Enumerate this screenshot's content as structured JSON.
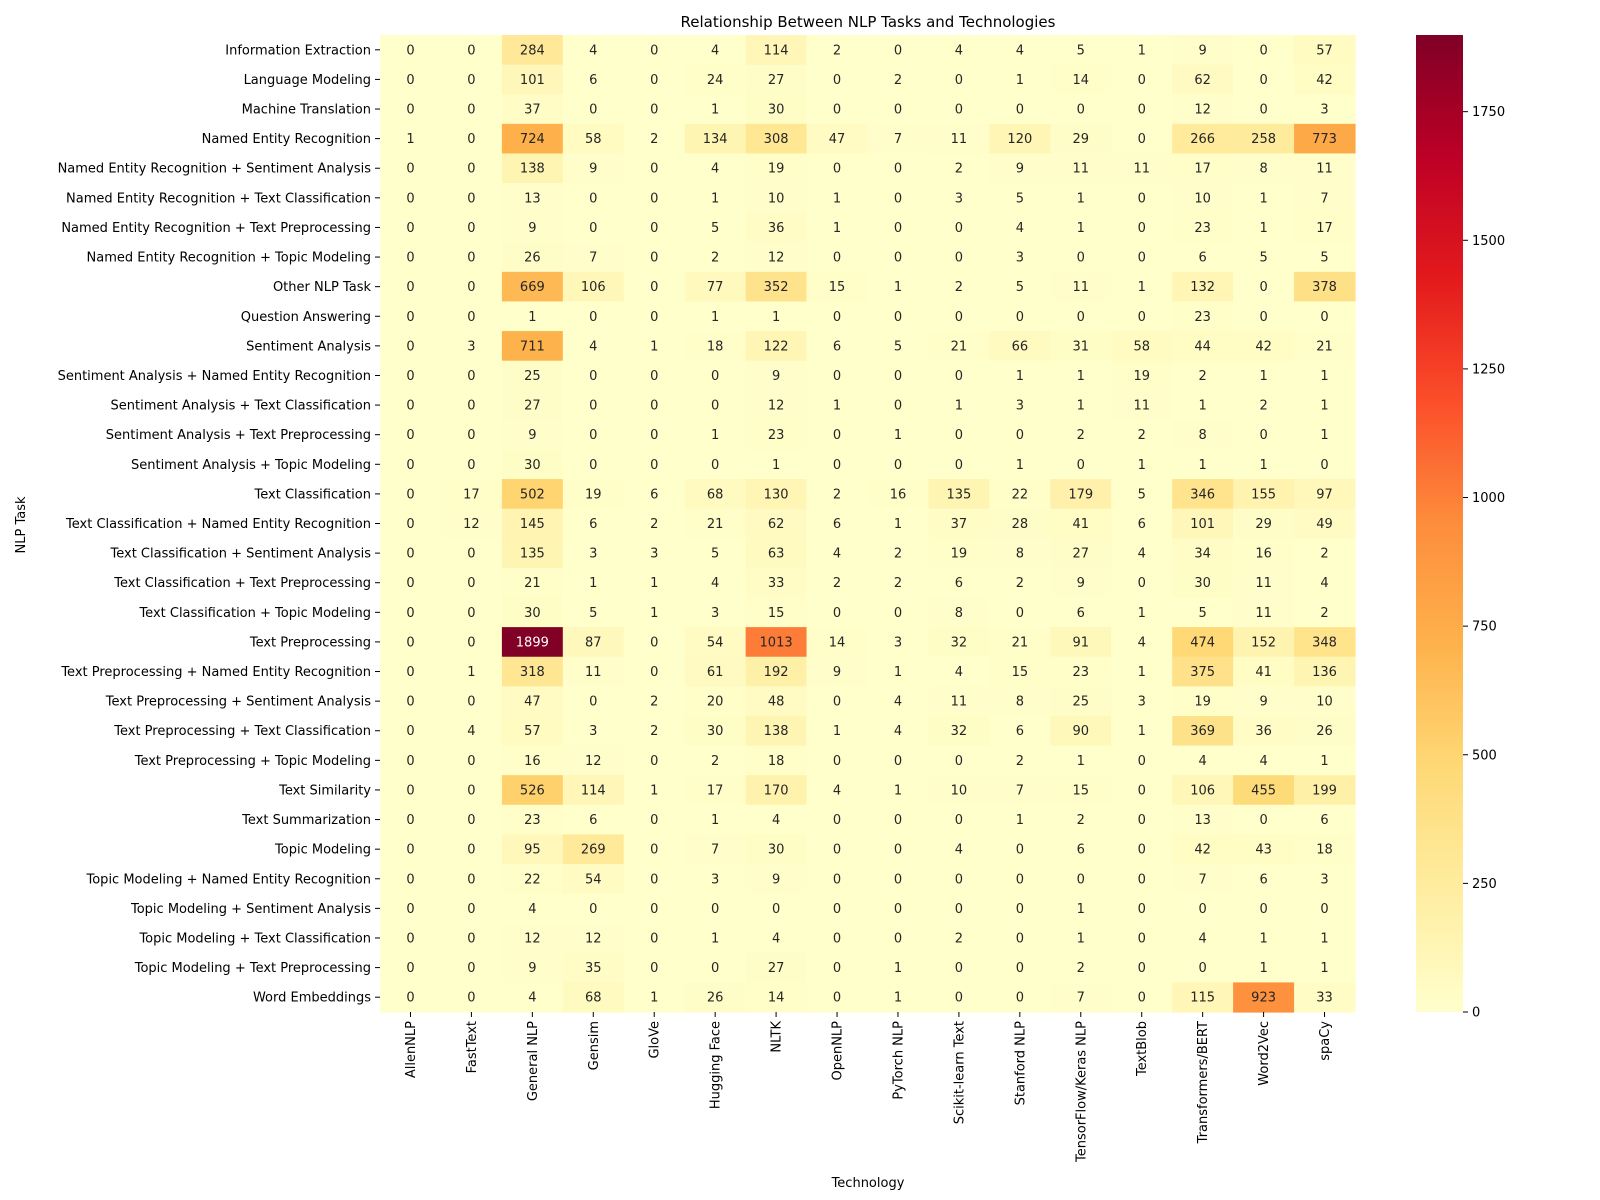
{
  "chart_data": {
    "type": "heatmap",
    "title": "Relationship Between NLP Tasks and Technologies",
    "xlabel": "Technology",
    "ylabel": "NLP Task",
    "colormap": "YlOrRd",
    "value_range": [
      0,
      1899
    ],
    "colorbar_ticks": [
      0,
      250,
      500,
      750,
      1000,
      1250,
      1500,
      1750
    ],
    "colors": [
      "#ffffcc",
      "#ffeda0",
      "#fed976",
      "#feb24c",
      "#fd8d3c",
      "#fc4e2a",
      "#e31a1c",
      "#bd0026",
      "#800026"
    ],
    "columns": [
      "AllenNLP",
      "FastText",
      "General NLP",
      "Gensim",
      "GloVe",
      "Hugging Face",
      "NLTK",
      "OpenNLP",
      "PyTorch NLP",
      "Scikit-learn Text",
      "Stanford NLP",
      "TensorFlow/Keras NLP",
      "TextBlob",
      "Transformers/BERT",
      "Word2Vec",
      "spaCy"
    ],
    "rows": [
      "Information Extraction",
      "Language Modeling",
      "Machine Translation",
      "Named Entity Recognition",
      "Named Entity Recognition + Sentiment Analysis",
      "Named Entity Recognition + Text Classification",
      "Named Entity Recognition + Text Preprocessing",
      "Named Entity Recognition + Topic Modeling",
      "Other NLP Task",
      "Question Answering",
      "Sentiment Analysis",
      "Sentiment Analysis + Named Entity Recognition",
      "Sentiment Analysis + Text Classification",
      "Sentiment Analysis + Text Preprocessing",
      "Sentiment Analysis + Topic Modeling",
      "Text Classification",
      "Text Classification + Named Entity Recognition",
      "Text Classification + Sentiment Analysis",
      "Text Classification + Text Preprocessing",
      "Text Classification + Topic Modeling",
      "Text Preprocessing",
      "Text Preprocessing + Named Entity Recognition",
      "Text Preprocessing + Sentiment Analysis",
      "Text Preprocessing + Text Classification",
      "Text Preprocessing + Topic Modeling",
      "Text Similarity",
      "Text Summarization",
      "Topic Modeling",
      "Topic Modeling + Named Entity Recognition",
      "Topic Modeling + Sentiment Analysis",
      "Topic Modeling + Text Classification",
      "Topic Modeling + Text Preprocessing",
      "Word Embeddings"
    ],
    "values": [
      [
        0,
        0,
        284,
        4,
        0,
        4,
        114,
        2,
        0,
        4,
        4,
        5,
        1,
        9,
        0,
        57
      ],
      [
        0,
        0,
        101,
        6,
        0,
        24,
        27,
        0,
        2,
        0,
        1,
        14,
        0,
        62,
        0,
        42
      ],
      [
        0,
        0,
        37,
        0,
        0,
        1,
        30,
        0,
        0,
        0,
        0,
        0,
        0,
        12,
        0,
        3
      ],
      [
        1,
        0,
        724,
        58,
        2,
        134,
        308,
        47,
        7,
        11,
        120,
        29,
        0,
        266,
        258,
        773
      ],
      [
        0,
        0,
        138,
        9,
        0,
        4,
        19,
        0,
        0,
        2,
        9,
        11,
        11,
        17,
        8,
        11
      ],
      [
        0,
        0,
        13,
        0,
        0,
        1,
        10,
        1,
        0,
        3,
        5,
        1,
        0,
        10,
        1,
        7
      ],
      [
        0,
        0,
        9,
        0,
        0,
        5,
        36,
        1,
        0,
        0,
        4,
        1,
        0,
        23,
        1,
        17
      ],
      [
        0,
        0,
        26,
        7,
        0,
        2,
        12,
        0,
        0,
        0,
        3,
        0,
        0,
        6,
        5,
        5
      ],
      [
        0,
        0,
        669,
        106,
        0,
        77,
        352,
        15,
        1,
        2,
        5,
        11,
        1,
        132,
        0,
        378
      ],
      [
        0,
        0,
        1,
        0,
        0,
        1,
        1,
        0,
        0,
        0,
        0,
        0,
        0,
        23,
        0,
        0
      ],
      [
        0,
        3,
        711,
        4,
        1,
        18,
        122,
        6,
        5,
        21,
        66,
        31,
        58,
        44,
        42,
        21
      ],
      [
        0,
        0,
        25,
        0,
        0,
        0,
        9,
        0,
        0,
        0,
        1,
        1,
        19,
        2,
        1,
        1
      ],
      [
        0,
        0,
        27,
        0,
        0,
        0,
        12,
        1,
        0,
        1,
        3,
        1,
        11,
        1,
        2,
        1
      ],
      [
        0,
        0,
        9,
        0,
        0,
        1,
        23,
        0,
        1,
        0,
        0,
        2,
        2,
        8,
        0,
        1
      ],
      [
        0,
        0,
        30,
        0,
        0,
        0,
        1,
        0,
        0,
        0,
        1,
        0,
        1,
        1,
        1,
        0
      ],
      [
        0,
        17,
        502,
        19,
        6,
        68,
        130,
        2,
        16,
        135,
        22,
        179,
        5,
        346,
        155,
        97
      ],
      [
        0,
        12,
        145,
        6,
        2,
        21,
        62,
        6,
        1,
        37,
        28,
        41,
        6,
        101,
        29,
        49
      ],
      [
        0,
        0,
        135,
        3,
        3,
        5,
        63,
        4,
        2,
        19,
        8,
        27,
        4,
        34,
        16,
        2
      ],
      [
        0,
        0,
        21,
        1,
        1,
        4,
        33,
        2,
        2,
        6,
        2,
        9,
        0,
        30,
        11,
        4
      ],
      [
        0,
        0,
        30,
        5,
        1,
        3,
        15,
        0,
        0,
        8,
        0,
        6,
        1,
        5,
        11,
        2
      ],
      [
        0,
        0,
        1899,
        87,
        0,
        54,
        1013,
        14,
        3,
        32,
        21,
        91,
        4,
        474,
        152,
        348
      ],
      [
        0,
        1,
        318,
        11,
        0,
        61,
        192,
        9,
        1,
        4,
        15,
        23,
        1,
        375,
        41,
        136
      ],
      [
        0,
        0,
        47,
        0,
        2,
        20,
        48,
        0,
        4,
        11,
        8,
        25,
        3,
        19,
        9,
        10
      ],
      [
        0,
        4,
        57,
        3,
        2,
        30,
        138,
        1,
        4,
        32,
        6,
        90,
        1,
        369,
        36,
        26
      ],
      [
        0,
        0,
        16,
        12,
        0,
        2,
        18,
        0,
        0,
        0,
        2,
        1,
        0,
        4,
        4,
        1
      ],
      [
        0,
        0,
        526,
        114,
        1,
        17,
        170,
        4,
        1,
        10,
        7,
        15,
        0,
        106,
        455,
        199
      ],
      [
        0,
        0,
        23,
        6,
        0,
        1,
        4,
        0,
        0,
        0,
        1,
        2,
        0,
        13,
        0,
        6
      ],
      [
        0,
        0,
        95,
        269,
        0,
        7,
        30,
        0,
        0,
        4,
        0,
        6,
        0,
        42,
        43,
        18
      ],
      [
        0,
        0,
        22,
        54,
        0,
        3,
        9,
        0,
        0,
        0,
        0,
        0,
        0,
        7,
        6,
        3
      ],
      [
        0,
        0,
        4,
        0,
        0,
        0,
        0,
        0,
        0,
        0,
        0,
        1,
        0,
        0,
        0,
        0
      ],
      [
        0,
        0,
        12,
        12,
        0,
        1,
        4,
        0,
        0,
        2,
        0,
        1,
        0,
        4,
        1,
        1
      ],
      [
        0,
        0,
        9,
        35,
        0,
        0,
        27,
        0,
        1,
        0,
        0,
        2,
        0,
        0,
        1,
        1
      ],
      [
        0,
        0,
        4,
        68,
        1,
        26,
        14,
        0,
        1,
        0,
        0,
        7,
        0,
        115,
        923,
        33
      ]
    ]
  }
}
